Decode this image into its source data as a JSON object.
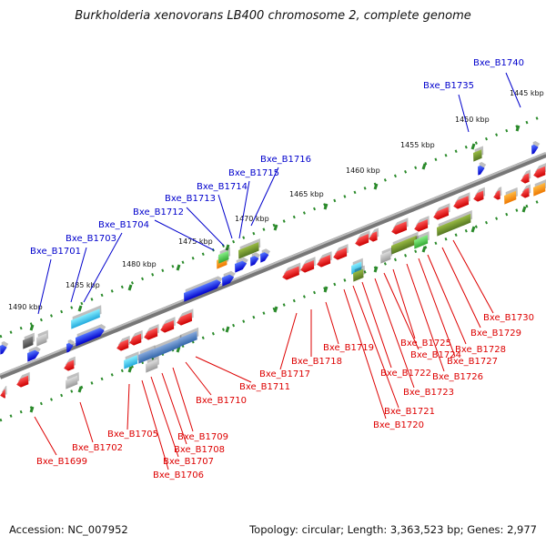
{
  "title": "Burkholderia xenovorans LB400 chromosome 2, complete genome",
  "footer": {
    "accession": "Accession: NC_007952",
    "summary": "Topology: circular; Length: 3,363,523 bp; Genes: 2,977"
  },
  "colors": {
    "forward_label": "#0000cc",
    "reverse_label": "#dd0000",
    "backbone": "#888888",
    "tick": "#228822"
  },
  "kbp_labels": [
    "1445 kbp",
    "1450 kbp",
    "1455 kbp",
    "1460 kbp",
    "1465 kbp",
    "1470 kbp",
    "1475 kbp",
    "1480 kbp",
    "1485 kbp",
    "1490 kbp"
  ],
  "forward_genes": [
    "Bxe_B1740",
    "Bxe_B1735",
    "Bxe_B1716",
    "Bxe_B1715",
    "Bxe_B1714",
    "Bxe_B1713",
    "Bxe_B1712",
    "Bxe_B1704",
    "Bxe_B1703",
    "Bxe_B1701"
  ],
  "reverse_genes": [
    "Bxe_B1730",
    "Bxe_B1729",
    "Bxe_B1728",
    "Bxe_B1727",
    "Bxe_B1726",
    "Bxe_B1725",
    "Bxe_B1724",
    "Bxe_B1723",
    "Bxe_B1722",
    "Bxe_B1721",
    "Bxe_B1720",
    "Bxe_B1719",
    "Bxe_B1718",
    "Bxe_B1717",
    "Bxe_B1711",
    "Bxe_B1710",
    "Bxe_B1709",
    "Bxe_B1708",
    "Bxe_B1707",
    "Bxe_B1706",
    "Bxe_B1705",
    "Bxe_B1702",
    "Bxe_B1699"
  ]
}
